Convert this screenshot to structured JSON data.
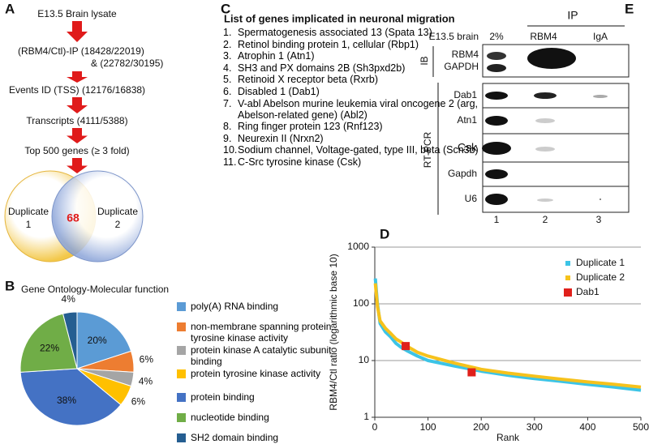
{
  "panel_a": {
    "label": "A",
    "steps": [
      "E13.5 Brain lysate",
      "(RBM4/Ctl)-IP  (18428/22019)",
      "& (22782/30195)",
      "Events ID (TSS) (12176/16838)",
      "Transcripts (4111/5388)",
      "Top 500 genes (≥ 3 fold)"
    ],
    "venn": {
      "left": [
        "Duplicate",
        "1"
      ],
      "right": [
        "Duplicate",
        "2"
      ],
      "overlap": 68
    }
  },
  "panel_c": {
    "label": "C",
    "title": "List of genes implicated in neuronal migration",
    "items": [
      [
        "1.",
        "Spermatogenesis associated 13 (Spata 13)"
      ],
      [
        "2.",
        "Retinol binding protein 1, cellular (Rbp1)"
      ],
      [
        "3.",
        "Atrophin 1 (Atn1)"
      ],
      [
        "4.",
        "SH3 and PX domains 2B (Sh3pxd2b)"
      ],
      [
        "5.",
        "Retinoid X receptor beta (Rxrb)"
      ],
      [
        "6.",
        "Disabled 1 (Dab1)"
      ],
      [
        "7.",
        "V-abl Abelson murine leukemia viral oncogene 2 (arg, Abelson-related gene) (Abl2)"
      ],
      [
        "8.",
        "Ring finger protein 123 (Rnf123)"
      ],
      [
        "9.",
        "Neurexin II (Nrxn2)"
      ],
      [
        "10.",
        "Sodium channel, Voltage-gated, type III, beta (Scn3b)"
      ],
      [
        "11.",
        "C-Src tyrosine kinase (Csk)"
      ]
    ]
  },
  "panel_e": {
    "label": "E",
    "ip": "IP",
    "sample": "E13.5 brain",
    "lanes": [
      "2%",
      "RBM4",
      "IgA"
    ],
    "ib": "IB",
    "ib_rows": [
      "RBM4",
      "GAPDH"
    ],
    "rt": "RT-PCR",
    "rt_rows": [
      "Dab1",
      "Atn1",
      "Csk",
      "Gapdh",
      "U6"
    ],
    "lane_numbers": [
      "1",
      "2",
      "3"
    ]
  },
  "chart_data": [
    {
      "type": "pie",
      "panel": "B",
      "title": "Gene Ontology-Molecular function",
      "categories": [
        "poly(A) RNA binding",
        "non-membrane spanning protein tyrosine kinase activity",
        "protein kinase A catalytic subunit binding",
        "protein tyrosine kinase activity",
        "protein binding",
        "nucleotide binding",
        "SH2 domain binding"
      ],
      "values": [
        20,
        6,
        4,
        6,
        38,
        22,
        4
      ],
      "value_labels": [
        "20%",
        "6%",
        "4%",
        "6%",
        "38%",
        "22%",
        "4%"
      ],
      "colors": [
        "#5b9bd5",
        "#ed7d31",
        "#a5a5a5",
        "#ffc000",
        "#4472c4",
        "#70ad47",
        "#255e91"
      ]
    },
    {
      "type": "line",
      "panel": "D",
      "xlabel": "Rank",
      "ylabel": "RBM4/Ctl ratio (logarithmic base 10)",
      "x": [
        1,
        5,
        10,
        20,
        30,
        40,
        50,
        60,
        80,
        100,
        150,
        200,
        250,
        300,
        350,
        400,
        450,
        500
      ],
      "series": [
        {
          "name": "Duplicate 1",
          "color": "#3cc4e6",
          "values": [
            280,
            100,
            45,
            32,
            26,
            20,
            17,
            15,
            12,
            10,
            8,
            6.5,
            5.5,
            4.8,
            4.3,
            3.8,
            3.4,
            3.0
          ]
        },
        {
          "name": "Duplicate 2",
          "color": "#f6c21c",
          "values": [
            230,
            90,
            50,
            37,
            30,
            24,
            21,
            18,
            14,
            12,
            9,
            7,
            6,
            5.3,
            4.7,
            4.2,
            3.8,
            3.4
          ]
        },
        {
          "name": "Dab1",
          "color": "#e0201b",
          "type": "scatter",
          "x": [
            58,
            182
          ],
          "values": [
            18,
            6.2
          ]
        }
      ],
      "xlim": [
        0,
        500
      ],
      "ylim": [
        1,
        1000
      ],
      "yscale": "log",
      "xticks": [
        0,
        100,
        200,
        300,
        400,
        500
      ],
      "yticks": [
        1,
        10,
        100,
        1000
      ],
      "grid": true,
      "legend": "upper right"
    }
  ]
}
